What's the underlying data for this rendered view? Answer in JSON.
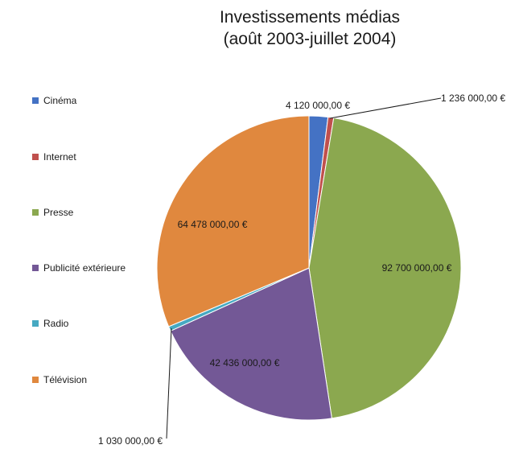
{
  "chart_data": {
    "type": "pie",
    "title_line1": "Investissements médias",
    "title_line2": "(août 2003-juillet 2004)",
    "categories": [
      "Cinéma",
      "Internet",
      "Presse",
      "Publicité extérieure",
      "Radio",
      "Télévision"
    ],
    "values": [
      4120000,
      1236000,
      92700000,
      42436000,
      1030000,
      64478000
    ],
    "data_labels": [
      "4 120 000,00 €",
      "1 236 000,00 €",
      "92 700 000,00 €",
      "42 436 000,00 €",
      "1 030 000,00 €",
      "64 478 000,00 €"
    ],
    "colors": [
      "#4472C4",
      "#C0504D",
      "#8BA84F",
      "#735896",
      "#46A9C2",
      "#E0883E"
    ],
    "legend_position": "left",
    "start_angle": "12 o'clock",
    "direction": "clockwise"
  }
}
